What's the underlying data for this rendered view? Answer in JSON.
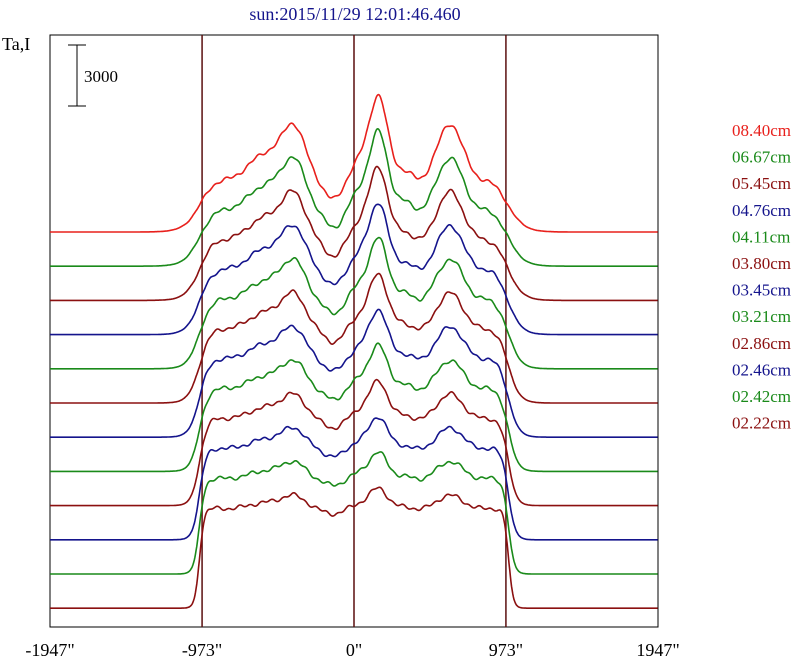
{
  "chart_data": {
    "type": "line",
    "title": "sun:2015/11/29 12:01:46.460",
    "ylabel": "Ta,I",
    "scale_bar_label": "3000",
    "scale_bar_value": 3000,
    "xlim": [
      -1947,
      1947
    ],
    "x_ticks": [
      {
        "value": -1947,
        "label": "-1947\""
      },
      {
        "value": -973,
        "label": "-973\""
      },
      {
        "value": 0,
        "label": "0\""
      },
      {
        "value": 973,
        "label": "973\""
      },
      {
        "value": 1947,
        "label": "1947\""
      }
    ],
    "reference_lines_x": [
      -973,
      0,
      973
    ],
    "grid": false,
    "legend_position": "right",
    "series": [
      {
        "name": "08.40cm",
        "color": "#e8201c"
      },
      {
        "name": "06.67cm",
        "color": "#1a8a1a"
      },
      {
        "name": "05.45cm",
        "color": "#8b1010"
      },
      {
        "name": "04.76cm",
        "color": "#14148c"
      },
      {
        "name": "04.11cm",
        "color": "#1a8a1a"
      },
      {
        "name": "03.80cm",
        "color": "#8b1010"
      },
      {
        "name": "03.45cm",
        "color": "#14148c"
      },
      {
        "name": "03.21cm",
        "color": "#1a8a1a"
      },
      {
        "name": "02.86cm",
        "color": "#8b1010"
      },
      {
        "name": "02.46cm",
        "color": "#14148c"
      },
      {
        "name": "02.42cm",
        "color": "#1a8a1a"
      },
      {
        "name": "02.22cm",
        "color": "#8b1010"
      }
    ]
  }
}
